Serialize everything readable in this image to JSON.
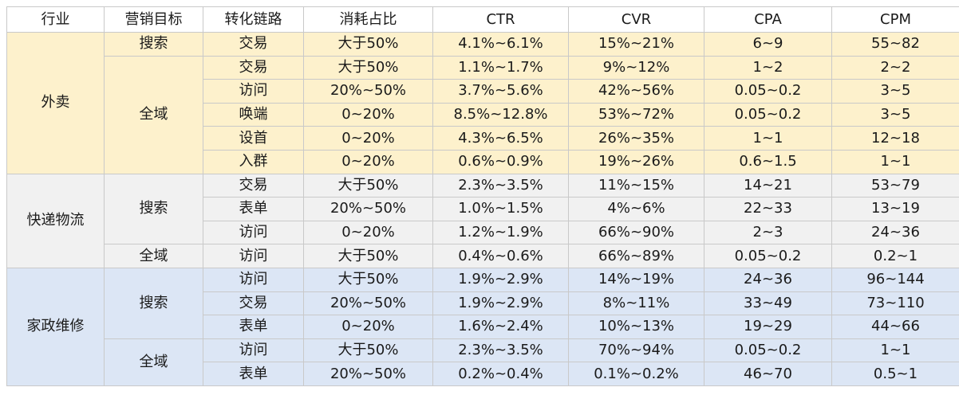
{
  "headers": {
    "industry": "行业",
    "goal": "营销目标",
    "chain": "转化链路",
    "spend": "消耗占比",
    "ctr": "CTR",
    "cvr": "CVR",
    "cpa": "CPA",
    "cpm": "CPM"
  },
  "colors": {
    "food_band": "#fdf1cc",
    "logistics_band": "#f1f1f1",
    "home_band": "#dce6f5",
    "grid_line": "#c9c9c9"
  },
  "groups": [
    {
      "industry": "外卖",
      "band": "food",
      "goals": [
        {
          "goal": "搜索",
          "rows": [
            {
              "chain": "交易",
              "spend": "大于50%",
              "ctr": "4.1%~6.1%",
              "cvr": "15%~21%",
              "cpa": "6~9",
              "cpm": "55~82"
            }
          ]
        },
        {
          "goal": "全域",
          "rows": [
            {
              "chain": "交易",
              "spend": "大于50%",
              "ctr": "1.1%~1.7%",
              "cvr": "9%~12%",
              "cpa": "1~2",
              "cpm": "2~2"
            },
            {
              "chain": "访问",
              "spend": "20%~50%",
              "ctr": "3.7%~5.6%",
              "cvr": "42%~56%",
              "cpa": "0.05~0.2",
              "cpm": "3~5"
            },
            {
              "chain": "唤端",
              "spend": "0~20%",
              "ctr": "8.5%~12.8%",
              "cvr": "53%~72%",
              "cpa": "0.05~0.2",
              "cpm": "3~5"
            },
            {
              "chain": "设首",
              "spend": "0~20%",
              "ctr": "4.3%~6.5%",
              "cvr": "26%~35%",
              "cpa": "1~1",
              "cpm": "12~18"
            },
            {
              "chain": "入群",
              "spend": "0~20%",
              "ctr": "0.6%~0.9%",
              "cvr": "19%~26%",
              "cpa": "0.6~1.5",
              "cpm": "1~1"
            }
          ]
        }
      ]
    },
    {
      "industry": "快递物流",
      "band": "logistics",
      "goals": [
        {
          "goal": "搜索",
          "rows": [
            {
              "chain": "交易",
              "spend": "大于50%",
              "ctr": "2.3%~3.5%",
              "cvr": "11%~15%",
              "cpa": "14~21",
              "cpm": "53~79"
            },
            {
              "chain": "表单",
              "spend": "20%~50%",
              "ctr": "1.0%~1.5%",
              "cvr": "4%~6%",
              "cpa": "22~33",
              "cpm": "13~19"
            },
            {
              "chain": "访问",
              "spend": "0~20%",
              "ctr": "1.2%~1.9%",
              "cvr": "66%~90%",
              "cpa": "2~3",
              "cpm": "24~36"
            }
          ]
        },
        {
          "goal": "全域",
          "rows": [
            {
              "chain": "访问",
              "spend": "大于50%",
              "ctr": "0.4%~0.6%",
              "cvr": "66%~89%",
              "cpa": "0.05~0.2",
              "cpm": "0.2~1"
            }
          ]
        }
      ]
    },
    {
      "industry": "家政维修",
      "band": "home",
      "goals": [
        {
          "goal": "搜索",
          "rows": [
            {
              "chain": "访问",
              "spend": "大于50%",
              "ctr": "1.9%~2.9%",
              "cvr": "14%~19%",
              "cpa": "24~36",
              "cpm": "96~144"
            },
            {
              "chain": "交易",
              "spend": "20%~50%",
              "ctr": "1.9%~2.9%",
              "cvr": "8%~11%",
              "cpa": "33~49",
              "cpm": "73~110"
            },
            {
              "chain": "表单",
              "spend": "0~20%",
              "ctr": "1.6%~2.4%",
              "cvr": "10%~13%",
              "cpa": "19~29",
              "cpm": "44~66"
            }
          ]
        },
        {
          "goal": "全域",
          "rows": [
            {
              "chain": "访问",
              "spend": "大于50%",
              "ctr": "2.3%~3.5%",
              "cvr": "70%~94%",
              "cpa": "0.05~0.2",
              "cpm": "1~1"
            },
            {
              "chain": "表单",
              "spend": "20%~50%",
              "ctr": "0.2%~0.4%",
              "cvr": "0.1%~0.2%",
              "cpa": "46~70",
              "cpm": "0.5~1"
            }
          ]
        }
      ]
    }
  ]
}
